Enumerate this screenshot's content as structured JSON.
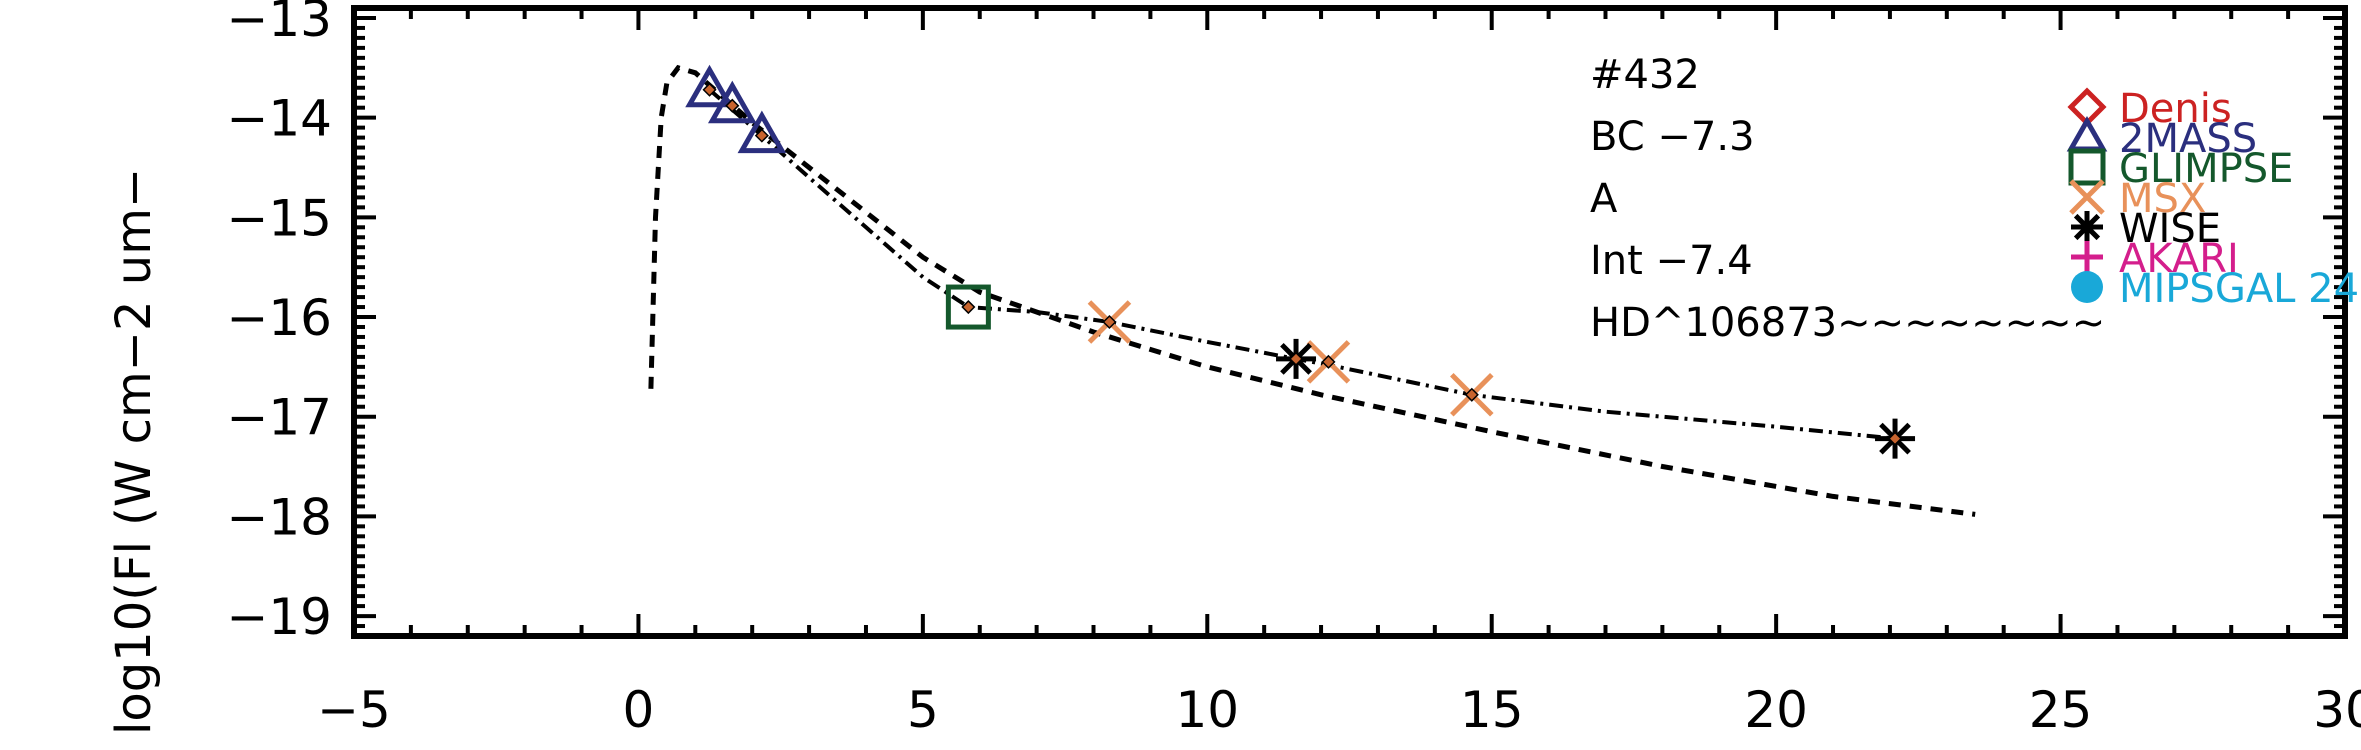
{
  "chart_data": {
    "type": "scatter",
    "title": "",
    "xlabel": "",
    "ylabel": "log10(Fl (W cm−2 um−",
    "xlim": [
      -5,
      30
    ],
    "ylim": [
      -19.2,
      -12.9
    ],
    "xticks": [
      -5,
      0,
      5,
      10,
      15,
      20,
      25,
      30
    ],
    "xtick_labels": [
      "−5",
      "0",
      "5",
      "10",
      "15",
      "20",
      "25",
      "30"
    ],
    "yticks": [
      -19,
      -18,
      -17,
      -16,
      -15,
      -14,
      -13
    ],
    "ytick_labels": [
      "−19",
      "−18",
      "−17",
      "−16",
      "−15",
      "−14",
      "−13"
    ],
    "grid": false,
    "legend_position": "right",
    "annotations": [
      "#432",
      "BC  −7.3",
      "A",
      "Int  −7.4",
      "HD^106873~~~~~~~~"
    ],
    "series": [
      {
        "name": "Denis",
        "marker": "diamond",
        "color": "#cc2222",
        "points": []
      },
      {
        "name": "2MASS",
        "marker": "triangle",
        "color": "#2b2f7e",
        "points": [
          [
            1.25,
            -13.72
          ],
          [
            1.65,
            -13.88
          ],
          [
            2.17,
            -14.18
          ]
        ]
      },
      {
        "name": "GLIMPSE",
        "marker": "square",
        "color": "#14582c",
        "points": [
          [
            5.8,
            -15.9
          ]
        ]
      },
      {
        "name": "MSX",
        "marker": "x",
        "color": "#e8915a",
        "points": [
          [
            8.28,
            -16.05
          ],
          [
            12.13,
            -16.45
          ],
          [
            14.65,
            -16.78
          ]
        ]
      },
      {
        "name": "WISE",
        "marker": "asterisk",
        "color": "#000000",
        "points": [
          [
            11.56,
            -16.42
          ],
          [
            22.09,
            -17.22
          ]
        ]
      },
      {
        "name": "AKARI",
        "marker": "plus",
        "color": "#d41e8c",
        "points": []
      },
      {
        "name": "MIPSGAL 24",
        "marker": "circle",
        "color": "#19a8d8",
        "points": []
      }
    ],
    "measured_dots": [
      [
        1.25,
        -13.72
      ],
      [
        1.65,
        -13.88
      ],
      [
        2.17,
        -14.18
      ],
      [
        5.8,
        -15.9
      ],
      [
        8.28,
        -16.05
      ],
      [
        11.56,
        -16.42
      ],
      [
        12.13,
        -16.45
      ],
      [
        14.65,
        -16.78
      ],
      [
        22.09,
        -17.22
      ]
    ],
    "model_curve": [
      [
        0.22,
        -16.72
      ],
      [
        0.3,
        -15.0
      ],
      [
        0.4,
        -14.0
      ],
      [
        0.5,
        -13.65
      ],
      [
        0.7,
        -13.5
      ],
      [
        1.0,
        -13.55
      ],
      [
        1.5,
        -13.8
      ],
      [
        2.0,
        -14.05
      ],
      [
        3.0,
        -14.5
      ],
      [
        4.0,
        -14.95
      ],
      [
        5.0,
        -15.4
      ],
      [
        6.0,
        -15.75
      ],
      [
        7.0,
        -15.95
      ],
      [
        8.0,
        -16.15
      ],
      [
        10.0,
        -16.5
      ],
      [
        12.0,
        -16.78
      ],
      [
        15.0,
        -17.15
      ],
      [
        18.0,
        -17.5
      ],
      [
        21.0,
        -17.8
      ],
      [
        23.5,
        -17.98
      ]
    ],
    "fit_curve": [
      [
        1.25,
        -13.72
      ],
      [
        2.17,
        -14.18
      ],
      [
        3.0,
        -14.6
      ],
      [
        4.0,
        -15.1
      ],
      [
        5.0,
        -15.6
      ],
      [
        5.8,
        -15.9
      ],
      [
        7.0,
        -15.95
      ],
      [
        8.28,
        -16.05
      ],
      [
        10.0,
        -16.25
      ],
      [
        11.56,
        -16.42
      ],
      [
        12.13,
        -16.48
      ],
      [
        14.65,
        -16.78
      ],
      [
        17.0,
        -16.95
      ],
      [
        20.0,
        -17.1
      ],
      [
        22.09,
        -17.22
      ]
    ]
  }
}
